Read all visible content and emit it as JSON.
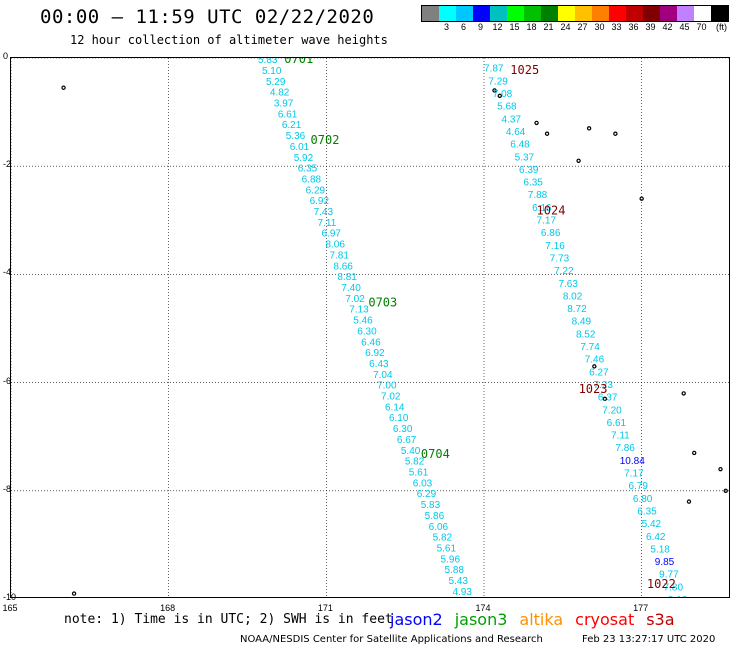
{
  "header": {
    "title": "00:00 — 11:59 UTC 02/22/2020",
    "subtitle": "12 hour collection of altimeter wave heights"
  },
  "legend": {
    "swatches": [
      "#808080",
      "#00ffff",
      "#00c8ff",
      "#0000ff",
      "#00c0c0",
      "#00ff00",
      "#00c000",
      "#008000",
      "#ffff00",
      "#ffc000",
      "#ff8000",
      "#ff0000",
      "#c00000",
      "#800000",
      "#a00080",
      "#c080ff",
      "#ffffff",
      "#000000"
    ],
    "labels": [
      "3",
      "6",
      "9",
      "12",
      "15",
      "18",
      "21",
      "24",
      "27",
      "30",
      "33",
      "36",
      "39",
      "42",
      "45",
      "70"
    ],
    "unit": "(ft)"
  },
  "map": {
    "lon_range": [
      165,
      178.7
    ],
    "lat_range": [
      0,
      -10
    ],
    "y_ticks": [
      "0",
      "-2",
      "-4",
      "-6",
      "-8",
      "-10"
    ],
    "x_ticks": [
      "165",
      "168",
      "171",
      "174",
      "177"
    ],
    "x_tick_values": [
      165,
      168,
      171,
      174,
      177
    ],
    "gridlines": true
  },
  "tracks": [
    {
      "color": "#00c8e8",
      "start": [
        169.7,
        -0.02
      ],
      "end": [
        173.4,
        -9.85
      ],
      "values": [
        "5.83",
        "5.10",
        "5.29",
        "4.82",
        "3.97",
        "6.61",
        "6.21",
        "5.36",
        "6.01",
        "5.92",
        "6.35",
        "6.88",
        "6.29",
        "6.92",
        "7.43",
        "7.11",
        "6.97",
        "8.06",
        "7.81",
        "8.66",
        "8.81",
        "7.40",
        "7.02",
        "7.13",
        "5.46",
        "6.30",
        "6.46",
        "6.92",
        "6.43",
        "7.04",
        "7.00",
        "7.02",
        "6.14",
        "6.10",
        "6.30",
        "6.67",
        "5.40",
        "5.82",
        "5.61",
        "6.03",
        "6.29",
        "5.83",
        "5.86",
        "6.06",
        "5.82",
        "5.61",
        "5.96",
        "5.88",
        "5.43",
        "4.93"
      ],
      "gaps": [
        4
      ]
    },
    {
      "color": "#00c8e8",
      "start": [
        174.0,
        -0.18
      ],
      "end": [
        177.5,
        -10.0
      ],
      "values": [
        "7.87",
        "7.29",
        "7.08",
        "5.68",
        "4.37",
        "4.64",
        "6.48",
        "5.37",
        "6.39",
        "6.35",
        "7.88",
        "6.16",
        "7.17",
        "6.86",
        "7.16",
        "7.73",
        "7.22",
        "7.63",
        "8.02",
        "8.72",
        "8.49",
        "8.52",
        "7.74",
        "7.46",
        "6.27",
        "7.23",
        "6.37",
        "7.20",
        "6.61",
        "7.11",
        "7.86",
        "10.84",
        "7.17",
        "6.79",
        "6.80",
        "6.35",
        "5.42",
        "6.42",
        "5.18",
        "9.85",
        "9.77",
        "7.80",
        "8.13"
      ],
      "highlight": {
        "10.84": "#0000ff",
        "9.85": "#0000ff"
      },
      "gaps": []
    }
  ],
  "pass_labels": [
    {
      "text": "0701",
      "color": "#008000",
      "lon": 170.2,
      "lat": 0.0
    },
    {
      "text": "0702",
      "color": "#008000",
      "lon": 170.7,
      "lat": -1.5
    },
    {
      "text": "0703",
      "color": "#008000",
      "lon": 171.8,
      "lat": -4.5
    },
    {
      "text": "0704",
      "color": "#008000",
      "lon": 172.8,
      "lat": -7.3
    },
    {
      "text": "1025",
      "color": "#800000",
      "lon": 174.5,
      "lat": -0.2
    },
    {
      "text": "1024",
      "color": "#800000",
      "lon": 175.0,
      "lat": -2.8
    },
    {
      "text": "1023",
      "color": "#800000",
      "lon": 175.8,
      "lat": -6.1
    },
    {
      "text": "1022",
      "color": "#800000",
      "lon": 177.1,
      "lat": -9.7
    }
  ],
  "footer": {
    "note": "note: 1) Time is in UTC; 2) SWH is in feet",
    "satellites": [
      {
        "name": "jason2",
        "color": "#0000ff"
      },
      {
        "name": "jason3",
        "color": "#00a000"
      },
      {
        "name": "altika",
        "color": "#ff9000"
      },
      {
        "name": "cryosat",
        "color": "#ff0000"
      },
      {
        "name": "s3a",
        "color": "#c00000"
      }
    ],
    "credit": "NOAA/NESDIS Center for Satellite Applications and Research",
    "timestamp": "Feb 23 13:27:17 UTC 2020"
  }
}
